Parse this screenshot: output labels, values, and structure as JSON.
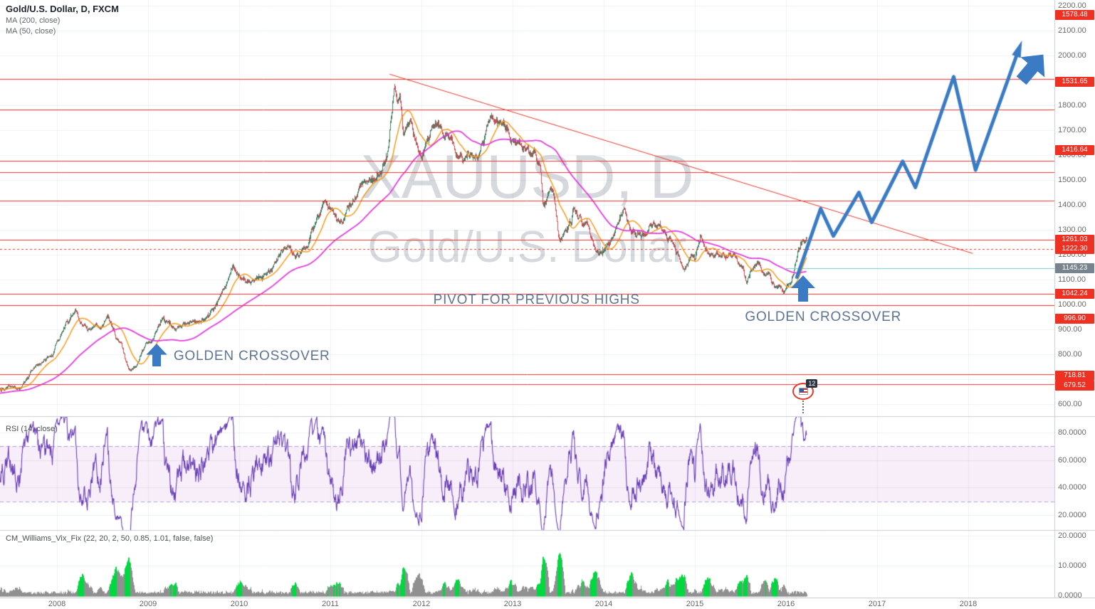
{
  "legend": {
    "symbol_title": "Gold/U.S. Dollar, D, FXCM",
    "ma200_label": "MA (200, close)",
    "ma50_label": "MA (50, close)"
  },
  "watermark": {
    "symbol": "XAUUSD, D",
    "description": "Gold/U.S. Dollar"
  },
  "rsi_pane": {
    "legend": "RSI (14, close)",
    "tick_values": [
      80,
      60,
      40,
      20
    ]
  },
  "vix_pane": {
    "legend": "CM_Williams_Vix_Fix (22, 20, 2, 50, 0.85, 1.01, false, false)",
    "tick_values": [
      20,
      10,
      0
    ]
  },
  "time_axis": {
    "years": [
      "2008",
      "2009",
      "2010",
      "2011",
      "2012",
      "2013",
      "2014",
      "2015",
      "2016",
      "2017",
      "2018"
    ]
  },
  "price_axis": {
    "tick_values": [
      2200,
      2100,
      2000,
      1800,
      1700,
      1600,
      1500,
      1400,
      1300,
      1200,
      1100,
      1000,
      900,
      800,
      600
    ],
    "red_labels": [
      {
        "value": 1578.48,
        "label_at": 2163
      },
      {
        "value": 1531.65,
        "label_at": 1893
      },
      {
        "value": 1416.64,
        "label_at": 1620
      },
      {
        "value": 1261.03,
        "label_at": 1261.03
      },
      {
        "value": 1222.3,
        "label_at": 1222.3
      },
      {
        "value": 1042.24,
        "label_at": 1042.24
      },
      {
        "value": 996.9,
        "label_at": 944
      },
      {
        "value": 718.81,
        "label_at": 713
      },
      {
        "value": 679.52,
        "label_at": 673
      }
    ],
    "gray_label": {
      "value": 1145.23
    }
  },
  "colors": {
    "grid": "rgba(99,117,139,0.10)",
    "paneBorder": "#c9ccd3",
    "red": "#e8372c",
    "teal": "#70c8c2",
    "blue": "#3a7bc3",
    "up": "#3f7f62",
    "down": "#cf4a52",
    "ma50": "#f89a1c",
    "ma200": "#e23edd",
    "rsiLine": "#6a3fb5",
    "rsiBandLine": "rgba(106,63,181,0.5)",
    "rsiBandFill": "rgba(156,39,176,0.08)",
    "vixGreen": "#00d840",
    "vixGray": "#909090"
  },
  "chart_data": {
    "type": "candlestick",
    "symbol": "XAUUSD",
    "timeframe": "D",
    "x_axis": "years 2008-2018, ~128px per year",
    "price_axis_range": [
      600,
      2200
    ],
    "price_keypoints": [
      [
        2006.55,
        615
      ],
      [
        2006.9,
        635
      ],
      [
        2007.2,
        655
      ],
      [
        2007.45,
        670
      ],
      [
        2007.6,
        665
      ],
      [
        2007.75,
        735
      ],
      [
        2007.95,
        800
      ],
      [
        2008.05,
        890
      ],
      [
        2008.2,
        975
      ],
      [
        2008.25,
        935
      ],
      [
        2008.35,
        900
      ],
      [
        2008.5,
        925
      ],
      [
        2008.55,
        965
      ],
      [
        2008.62,
        910
      ],
      [
        2008.7,
        830
      ],
      [
        2008.78,
        745
      ],
      [
        2008.85,
        760
      ],
      [
        2008.95,
        815
      ],
      [
        2009.1,
        900
      ],
      [
        2009.16,
        945
      ],
      [
        2009.3,
        890
      ],
      [
        2009.45,
        925
      ],
      [
        2009.6,
        945
      ],
      [
        2009.75,
        1000
      ],
      [
        2009.85,
        1095
      ],
      [
        2009.93,
        1170
      ],
      [
        2010.0,
        1120
      ],
      [
        2010.1,
        1085
      ],
      [
        2010.2,
        1110
      ],
      [
        2010.35,
        1135
      ],
      [
        2010.45,
        1210
      ],
      [
        2010.55,
        1230
      ],
      [
        2010.62,
        1195
      ],
      [
        2010.75,
        1245
      ],
      [
        2010.85,
        1345
      ],
      [
        2010.95,
        1390
      ],
      [
        2011.05,
        1360
      ],
      [
        2011.1,
        1330
      ],
      [
        2011.2,
        1410
      ],
      [
        2011.35,
        1490
      ],
      [
        2011.45,
        1510
      ],
      [
        2011.55,
        1530
      ],
      [
        2011.62,
        1600
      ],
      [
        2011.67,
        1760
      ],
      [
        2011.7,
        1880
      ],
      [
        2011.73,
        1830
      ],
      [
        2011.76,
        1880
      ],
      [
        2011.8,
        1690
      ],
      [
        2011.87,
        1740
      ],
      [
        2011.95,
        1630
      ],
      [
        2012.0,
        1590
      ],
      [
        2012.07,
        1660
      ],
      [
        2012.15,
        1750
      ],
      [
        2012.25,
        1680
      ],
      [
        2012.32,
        1650
      ],
      [
        2012.38,
        1620
      ],
      [
        2012.45,
        1580
      ],
      [
        2012.52,
        1600
      ],
      [
        2012.6,
        1610
      ],
      [
        2012.68,
        1650
      ],
      [
        2012.75,
        1760
      ],
      [
        2012.82,
        1740
      ],
      [
        2012.9,
        1705
      ],
      [
        2012.97,
        1665
      ],
      [
        2013.05,
        1665
      ],
      [
        2013.12,
        1640
      ],
      [
        2013.2,
        1590
      ],
      [
        2013.26,
        1600
      ],
      [
        2013.3,
        1560
      ],
      [
        2013.33,
        1400
      ],
      [
        2013.38,
        1435
      ],
      [
        2013.43,
        1460
      ],
      [
        2013.47,
        1395
      ],
      [
        2013.52,
        1230
      ],
      [
        2013.58,
        1290
      ],
      [
        2013.64,
        1335
      ],
      [
        2013.67,
        1390
      ],
      [
        2013.72,
        1350
      ],
      [
        2013.8,
        1320
      ],
      [
        2013.87,
        1260
      ],
      [
        2013.95,
        1215
      ],
      [
        2014.0,
        1230
      ],
      [
        2014.08,
        1265
      ],
      [
        2014.17,
        1355
      ],
      [
        2014.22,
        1380
      ],
      [
        2014.3,
        1300
      ],
      [
        2014.38,
        1290
      ],
      [
        2014.45,
        1260
      ],
      [
        2014.5,
        1315
      ],
      [
        2014.55,
        1335
      ],
      [
        2014.63,
        1300
      ],
      [
        2014.7,
        1260
      ],
      [
        2014.78,
        1230
      ],
      [
        2014.85,
        1170
      ],
      [
        2014.88,
        1145
      ],
      [
        2014.95,
        1195
      ],
      [
        2015.0,
        1185
      ],
      [
        2015.06,
        1285
      ],
      [
        2015.12,
        1230
      ],
      [
        2015.2,
        1180
      ],
      [
        2015.26,
        1200
      ],
      [
        2015.33,
        1185
      ],
      [
        2015.4,
        1200
      ],
      [
        2015.47,
        1175
      ],
      [
        2015.53,
        1140
      ],
      [
        2015.57,
        1090
      ],
      [
        2015.63,
        1125
      ],
      [
        2015.7,
        1155
      ],
      [
        2015.78,
        1135
      ],
      [
        2015.83,
        1105
      ],
      [
        2015.87,
        1070
      ],
      [
        2015.93,
        1075
      ],
      [
        2015.98,
        1060
      ],
      [
        2016.03,
        1085
      ],
      [
        2016.08,
        1125
      ],
      [
        2016.12,
        1195
      ],
      [
        2016.16,
        1240
      ],
      [
        2016.19,
        1235
      ],
      [
        2016.22,
        1255
      ]
    ],
    "moving_averages": [
      {
        "name": "MA (200, close)",
        "period": 200
      },
      {
        "name": "MA (50, close)",
        "period": 50
      }
    ],
    "horizontal_lines": [
      {
        "value": 1905,
        "style": "solid"
      },
      {
        "value": 1782,
        "style": "solid"
      },
      {
        "value": 1578.48,
        "style": "solid"
      },
      {
        "value": 1531.65,
        "style": "solid"
      },
      {
        "value": 1416.64,
        "style": "solid"
      },
      {
        "value": 1261.03,
        "style": "solid"
      },
      {
        "value": 1222.3,
        "style": "dotted"
      },
      {
        "value": 1042.24,
        "style": "solid"
      },
      {
        "value": 996.9,
        "style": "solid"
      },
      {
        "value": 718.81,
        "style": "solid"
      },
      {
        "value": 679.52,
        "style": "solid"
      }
    ],
    "teal_line": {
      "value": 1145.23,
      "from_year": 2016.0
    },
    "trendline": {
      "from": [
        2011.65,
        1925
      ],
      "to": [
        2018.05,
        1205
      ]
    },
    "projection": [
      [
        2016.12,
        1110
      ],
      [
        2016.38,
        1385
      ],
      [
        2016.52,
        1275
      ],
      [
        2016.8,
        1450
      ],
      [
        2016.94,
        1330
      ],
      [
        2017.28,
        1575
      ],
      [
        2017.42,
        1470
      ],
      [
        2017.84,
        1915
      ],
      [
        2018.08,
        1540
      ],
      [
        2018.55,
        2020
      ]
    ],
    "annotations": [
      {
        "text": "GOLDEN CROSSOVER",
        "year": 2009.28,
        "price": 822
      },
      {
        "text": "PIVOT FOR PREVIOUS HIGHS",
        "year": 2012.13,
        "price": 1048
      },
      {
        "text": "GOLDEN CROSSOVER",
        "year": 2015.55,
        "price": 980
      }
    ],
    "arrow_markers": [
      {
        "type": "up",
        "year": 2009.09,
        "price": 800,
        "size": 30
      },
      {
        "type": "up",
        "year": 2016.19,
        "price": 1068,
        "size": 34
      },
      {
        "type": "up-right",
        "year": 2018.7,
        "price": 1958,
        "size": 44
      }
    ],
    "idea_marker": {
      "year": 2016.19,
      "price": 652,
      "count": "12"
    },
    "rsi": {
      "period": 14,
      "band": [
        30,
        70
      ],
      "range": [
        20,
        80
      ]
    },
    "vix": {
      "params": [
        22,
        20,
        2,
        50,
        0.85,
        1.01,
        false,
        false
      ],
      "range": [
        0,
        20
      ]
    }
  }
}
